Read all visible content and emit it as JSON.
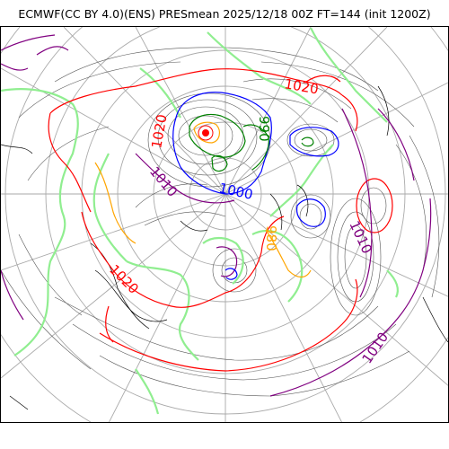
{
  "title": "ECMWF(CC BY 4.0)(ENS) PRESmean 2025/12/18 00Z FT=144 (init 1200Z)",
  "colors": {
    "grid": "#aaaaaa",
    "coast": "#000000",
    "land_outline": "#90ee90",
    "isobar_thin": "#555555",
    "isobar_1020": "#ff0000",
    "isobar_1010": "#800080",
    "isobar_1000": "#0000ff",
    "isobar_990": "#008000",
    "isobar_980": "#ffa500"
  },
  "contour_labels": [
    {
      "text": "1020",
      "color": "#ff0000"
    },
    {
      "text": "1020",
      "color": "#ff0000"
    },
    {
      "text": "990",
      "color": "#008000"
    },
    {
      "text": "1010",
      "color": "#800080"
    },
    {
      "text": "1000",
      "color": "#0000ff"
    },
    {
      "text": "1010",
      "color": "#800080"
    },
    {
      "text": "1010",
      "color": "#800080"
    },
    {
      "text": "1020",
      "color": "#ff0000"
    },
    {
      "text": "980",
      "color": "#ffa500"
    }
  ]
}
